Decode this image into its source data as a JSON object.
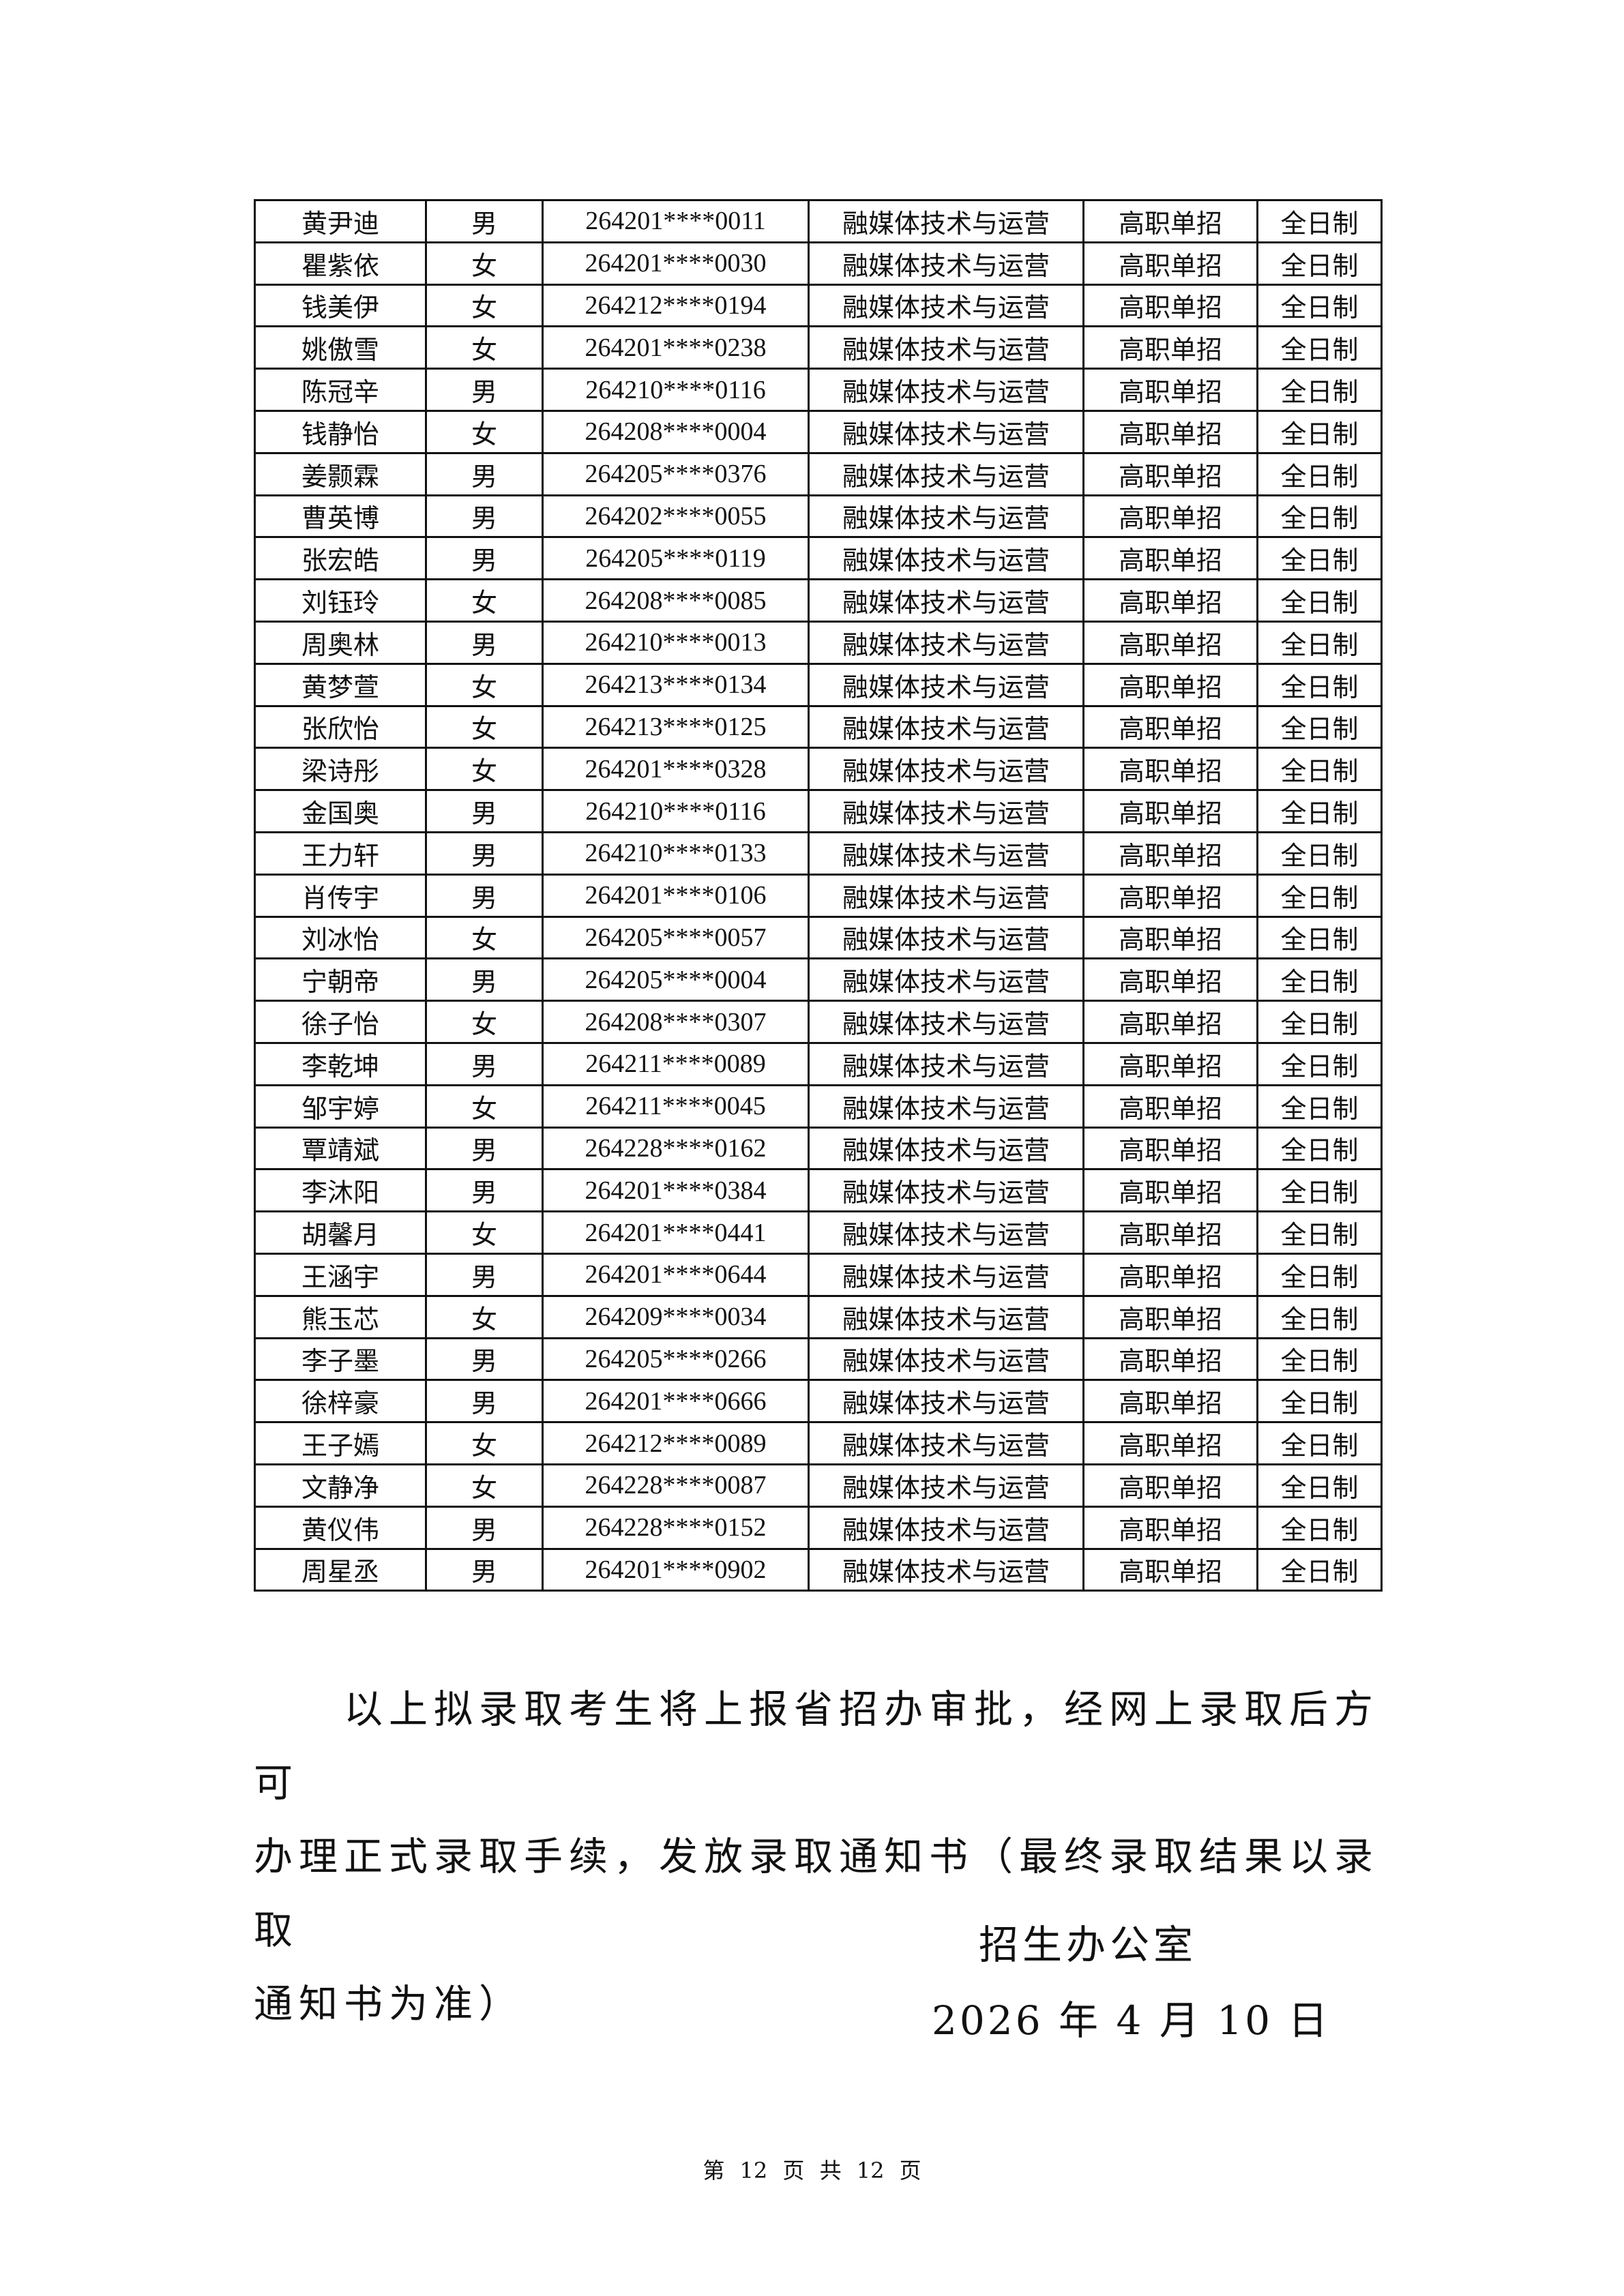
{
  "table": {
    "rows": [
      [
        "黄尹迪",
        "男",
        "264201****0011",
        "融媒体技术与运营",
        "高职单招",
        "全日制"
      ],
      [
        "瞿紫依",
        "女",
        "264201****0030",
        "融媒体技术与运营",
        "高职单招",
        "全日制"
      ],
      [
        "钱美伊",
        "女",
        "264212****0194",
        "融媒体技术与运营",
        "高职单招",
        "全日制"
      ],
      [
        "姚傲雪",
        "女",
        "264201****0238",
        "融媒体技术与运营",
        "高职单招",
        "全日制"
      ],
      [
        "陈冠辛",
        "男",
        "264210****0116",
        "融媒体技术与运营",
        "高职单招",
        "全日制"
      ],
      [
        "钱静怡",
        "女",
        "264208****0004",
        "融媒体技术与运营",
        "高职单招",
        "全日制"
      ],
      [
        "姜颢霖",
        "男",
        "264205****0376",
        "融媒体技术与运营",
        "高职单招",
        "全日制"
      ],
      [
        "曹英博",
        "男",
        "264202****0055",
        "融媒体技术与运营",
        "高职单招",
        "全日制"
      ],
      [
        "张宏皓",
        "男",
        "264205****0119",
        "融媒体技术与运营",
        "高职单招",
        "全日制"
      ],
      [
        "刘钰玲",
        "女",
        "264208****0085",
        "融媒体技术与运营",
        "高职单招",
        "全日制"
      ],
      [
        "周奥林",
        "男",
        "264210****0013",
        "融媒体技术与运营",
        "高职单招",
        "全日制"
      ],
      [
        "黄梦萱",
        "女",
        "264213****0134",
        "融媒体技术与运营",
        "高职单招",
        "全日制"
      ],
      [
        "张欣怡",
        "女",
        "264213****0125",
        "融媒体技术与运营",
        "高职单招",
        "全日制"
      ],
      [
        "梁诗彤",
        "女",
        "264201****0328",
        "融媒体技术与运营",
        "高职单招",
        "全日制"
      ],
      [
        "金国奥",
        "男",
        "264210****0116",
        "融媒体技术与运营",
        "高职单招",
        "全日制"
      ],
      [
        "王力轩",
        "男",
        "264210****0133",
        "融媒体技术与运营",
        "高职单招",
        "全日制"
      ],
      [
        "肖传宇",
        "男",
        "264201****0106",
        "融媒体技术与运营",
        "高职单招",
        "全日制"
      ],
      [
        "刘冰怡",
        "女",
        "264205****0057",
        "融媒体技术与运营",
        "高职单招",
        "全日制"
      ],
      [
        "宁朝帝",
        "男",
        "264205****0004",
        "融媒体技术与运营",
        "高职单招",
        "全日制"
      ],
      [
        "徐子怡",
        "女",
        "264208****0307",
        "融媒体技术与运营",
        "高职单招",
        "全日制"
      ],
      [
        "李乾坤",
        "男",
        "264211****0089",
        "融媒体技术与运营",
        "高职单招",
        "全日制"
      ],
      [
        "邹宇婷",
        "女",
        "264211****0045",
        "融媒体技术与运营",
        "高职单招",
        "全日制"
      ],
      [
        "覃靖斌",
        "男",
        "264228****0162",
        "融媒体技术与运营",
        "高职单招",
        "全日制"
      ],
      [
        "李沐阳",
        "男",
        "264201****0384",
        "融媒体技术与运营",
        "高职单招",
        "全日制"
      ],
      [
        "胡馨月",
        "女",
        "264201****0441",
        "融媒体技术与运营",
        "高职单招",
        "全日制"
      ],
      [
        "王涵宇",
        "男",
        "264201****0644",
        "融媒体技术与运营",
        "高职单招",
        "全日制"
      ],
      [
        "熊玉芯",
        "女",
        "264209****0034",
        "融媒体技术与运营",
        "高职单招",
        "全日制"
      ],
      [
        "李子墨",
        "男",
        "264205****0266",
        "融媒体技术与运营",
        "高职单招",
        "全日制"
      ],
      [
        "徐梓豪",
        "男",
        "264201****0666",
        "融媒体技术与运营",
        "高职单招",
        "全日制"
      ],
      [
        "王子嫣",
        "女",
        "264212****0089",
        "融媒体技术与运营",
        "高职单招",
        "全日制"
      ],
      [
        "文静净",
        "女",
        "264228****0087",
        "融媒体技术与运营",
        "高职单招",
        "全日制"
      ],
      [
        "黄仪伟",
        "男",
        "264228****0152",
        "融媒体技术与运营",
        "高职单招",
        "全日制"
      ],
      [
        "周星丞",
        "男",
        "264201****0902",
        "融媒体技术与运营",
        "高职单招",
        "全日制"
      ]
    ]
  },
  "notice": {
    "line1": "以上拟录取考生将上报省招办审批，经网上录取后方可",
    "line2": "办理正式录取手续，发放录取通知书（最终录取结果以录取",
    "line3": "通知书为准）"
  },
  "signature": "招生办公室",
  "date": "2026 年 4 月 10 日",
  "footer": "第 12 页 共 12 页"
}
